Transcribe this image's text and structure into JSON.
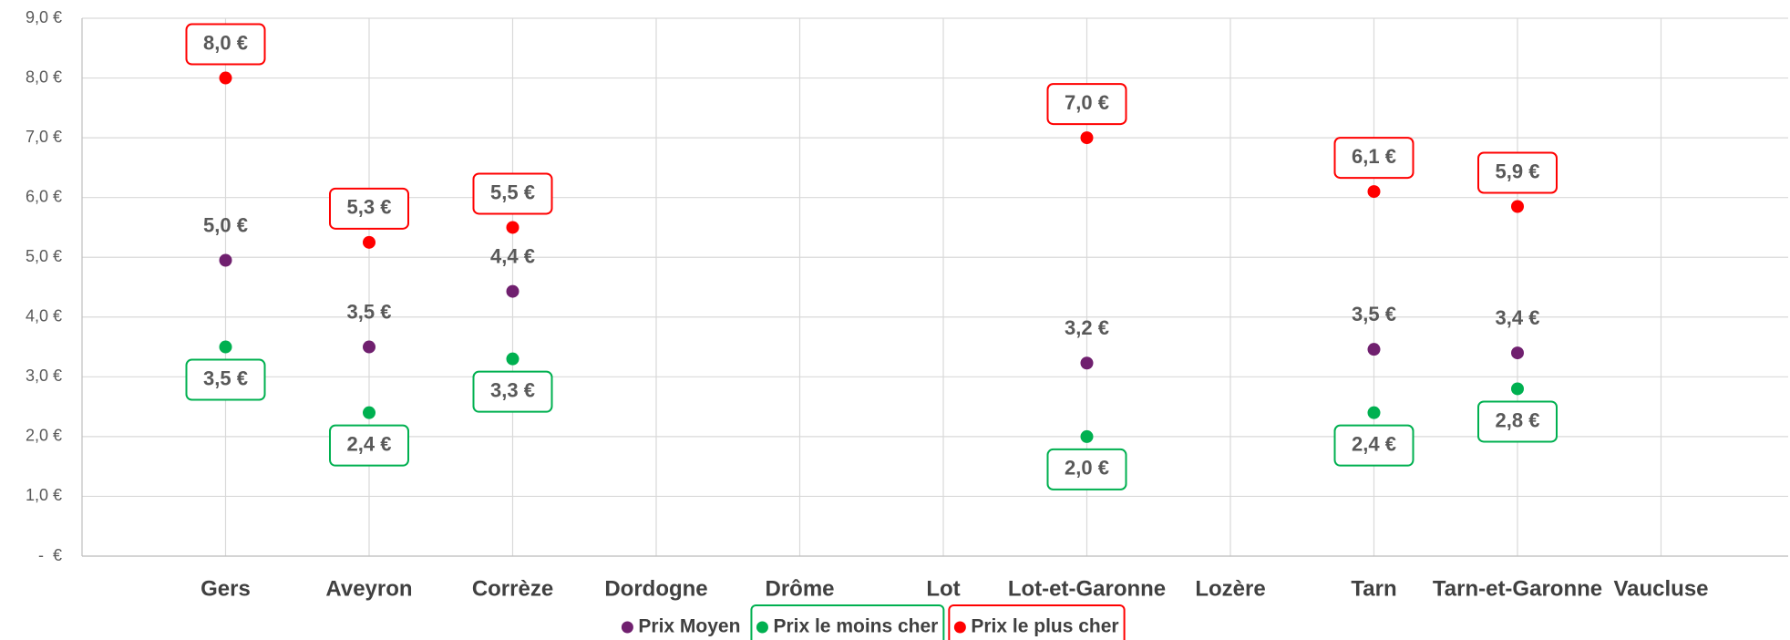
{
  "chart_data": {
    "type": "dot",
    "categories": [
      "Gers",
      "Aveyron",
      "Corrèze",
      "Dordogne",
      "Drôme",
      "Lot",
      "Lot-et-Garonne",
      "Lozère",
      "Tarn",
      "Tarn-et-Garonne",
      "Vaucluse"
    ],
    "series": [
      {
        "name": "Prix Moyen",
        "color": "#70206f",
        "label_style": "plain",
        "values": [
          4.95,
          3.5,
          4.43,
          null,
          null,
          null,
          3.23,
          null,
          3.46,
          3.4,
          null
        ],
        "value_labels": [
          "5,0 €",
          "3,5 €",
          "4,4 €",
          null,
          null,
          null,
          "3,2 €",
          null,
          "3,5 €",
          "3,4 €",
          null
        ]
      },
      {
        "name": "Prix le moins cher",
        "color": "#00b050",
        "label_style": "boxed-below",
        "values": [
          3.5,
          2.4,
          3.3,
          null,
          null,
          null,
          2.0,
          null,
          2.4,
          2.8,
          null
        ],
        "value_labels": [
          "3,5 €",
          "2,4 €",
          "3,3 €",
          null,
          null,
          null,
          "2,0 €",
          null,
          "2,4 €",
          "2,8 €",
          null
        ]
      },
      {
        "name": "Prix le plus cher",
        "color": "#ff0000",
        "label_style": "boxed-above",
        "values": [
          8.0,
          5.25,
          5.5,
          null,
          null,
          null,
          7.0,
          null,
          6.1,
          5.85,
          null
        ],
        "value_labels": [
          "8,0 €",
          "5,3 €",
          "5,5 €",
          null,
          null,
          null,
          "7,0 €",
          null,
          "6,1 €",
          "5,9 €",
          null
        ]
      }
    ],
    "ylim": [
      0,
      9
    ],
    "yticks": [
      {
        "value": 0,
        "label": "-  €"
      },
      {
        "value": 1,
        "label": "1,0 €"
      },
      {
        "value": 2,
        "label": "2,0 €"
      },
      {
        "value": 3,
        "label": "3,0 €"
      },
      {
        "value": 4,
        "label": "4,0 €"
      },
      {
        "value": 5,
        "label": "5,0 €"
      },
      {
        "value": 6,
        "label": "6,0 €"
      },
      {
        "value": 7,
        "label": "7,0 €"
      },
      {
        "value": 8,
        "label": "8,0 €"
      },
      {
        "value": 9,
        "label": "9,0 €"
      }
    ],
    "grid": true,
    "legend": "bottom"
  }
}
